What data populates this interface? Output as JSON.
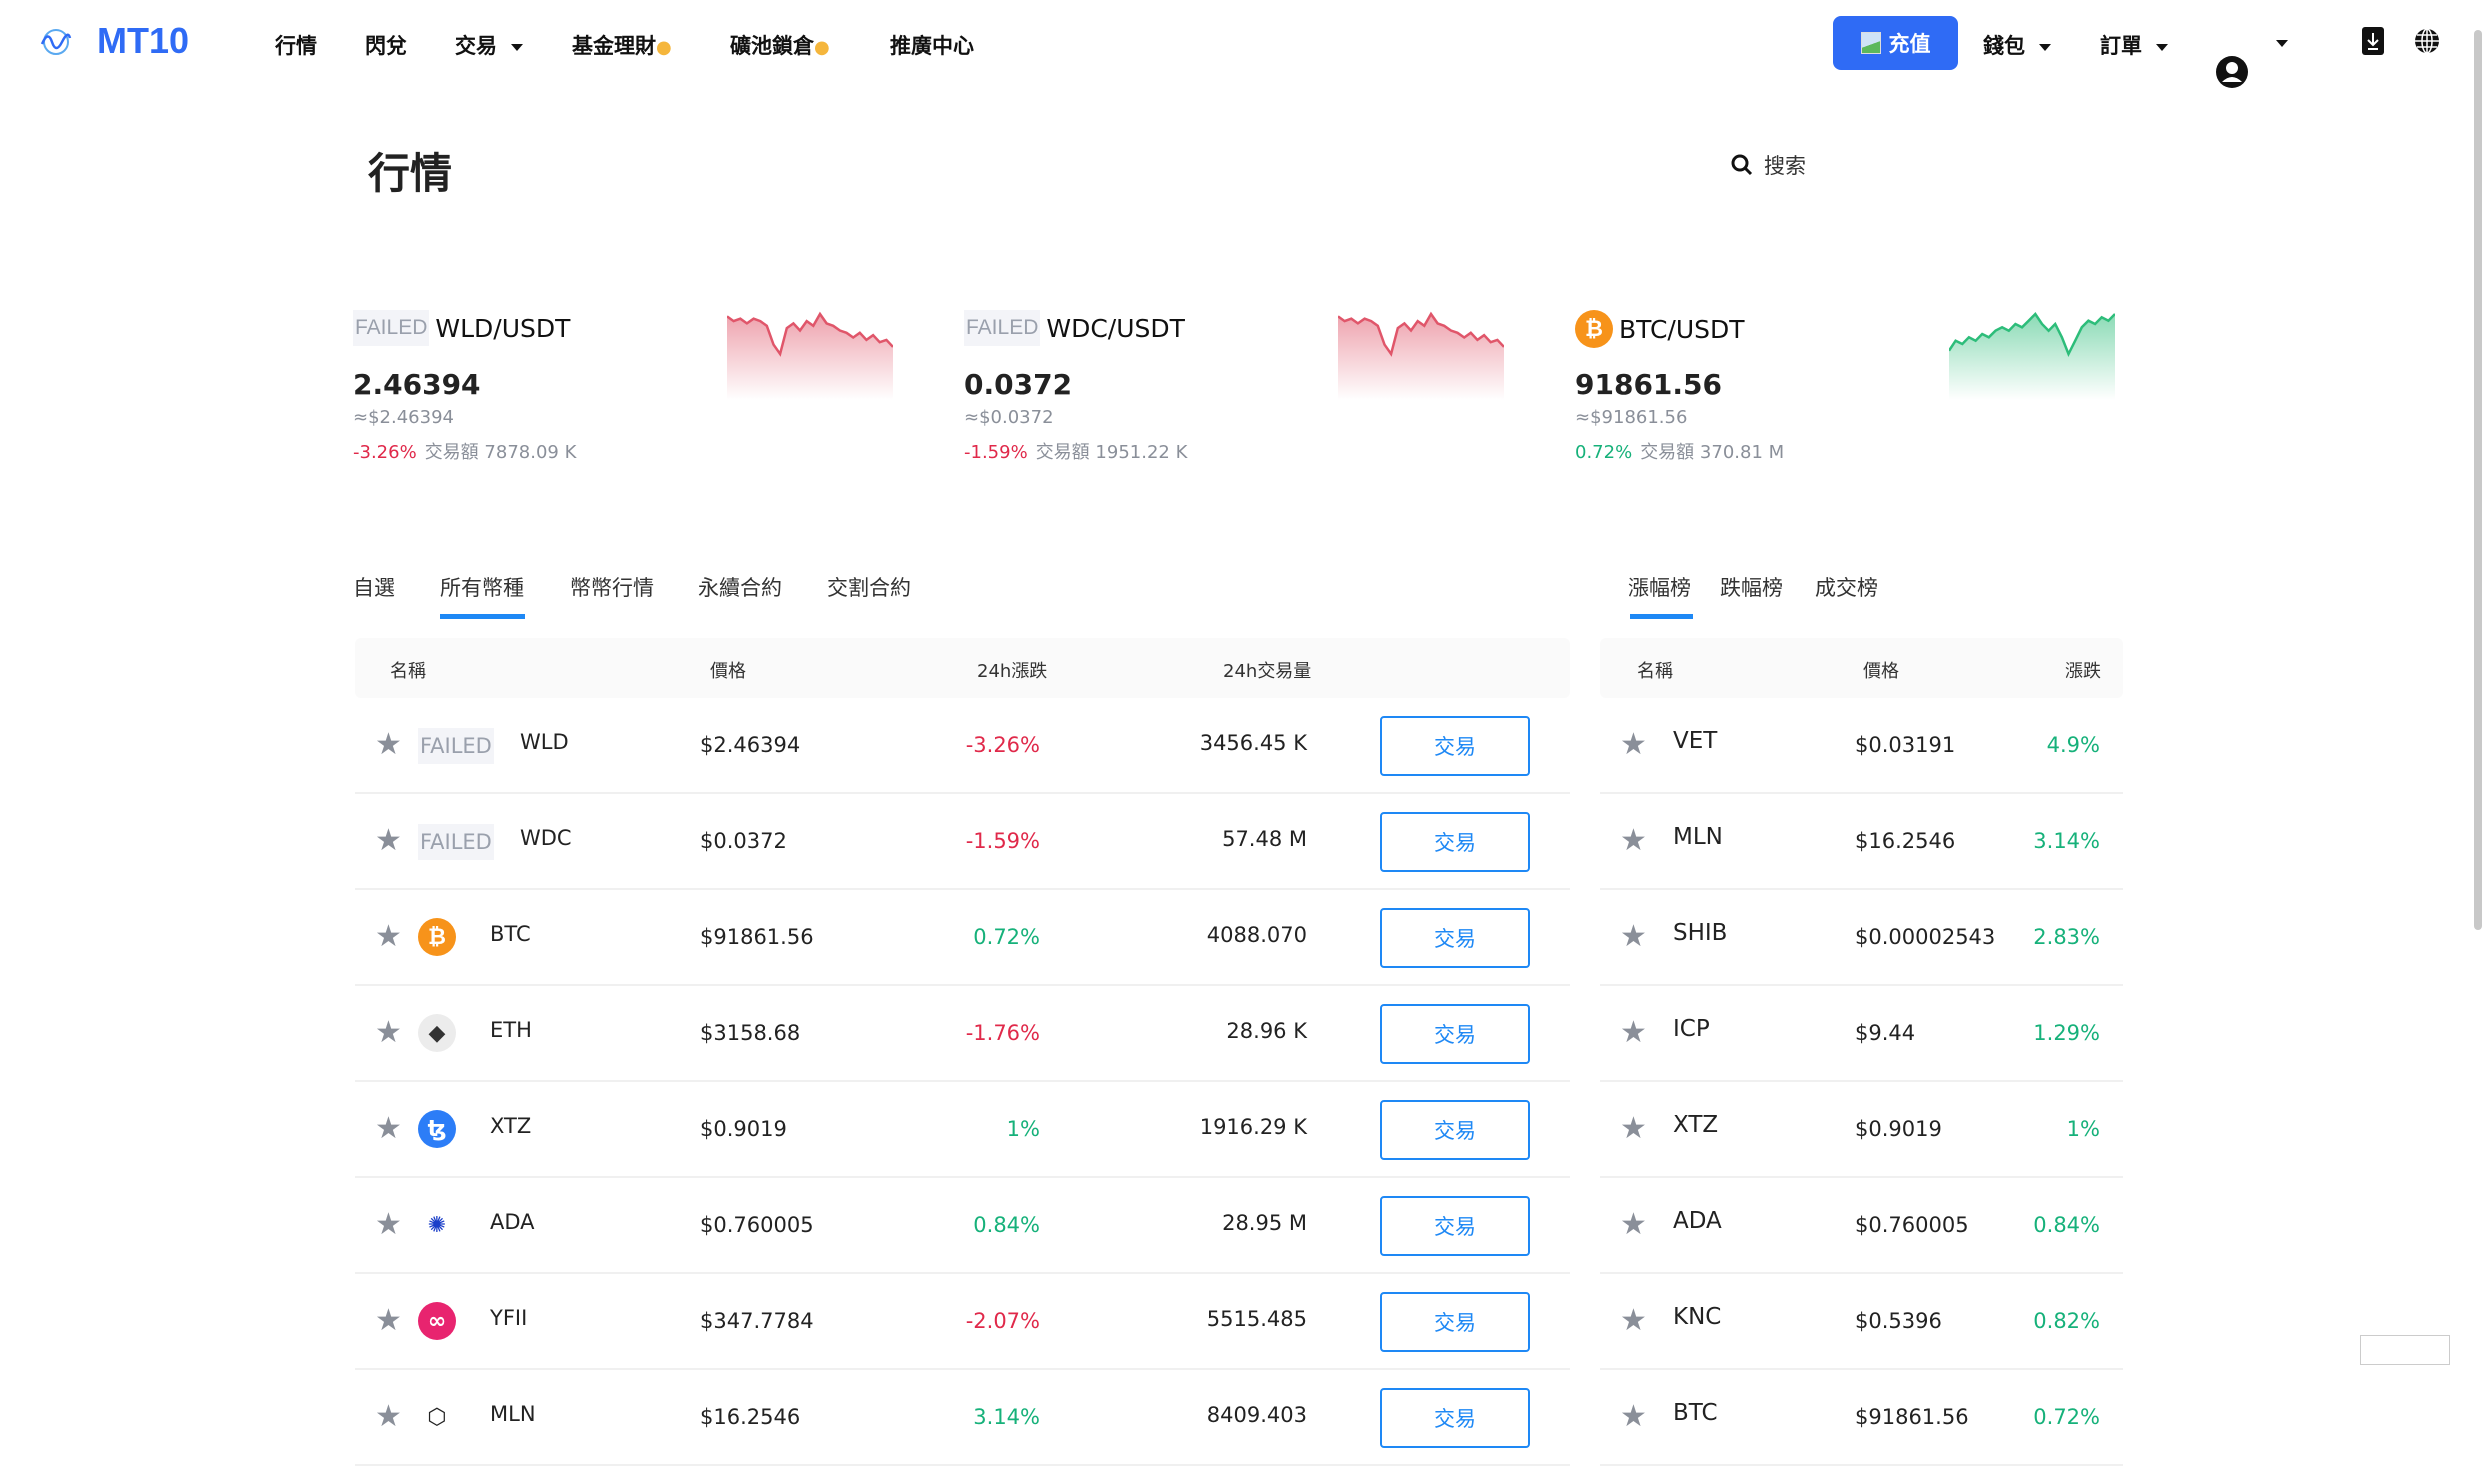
{
  "nav": {
    "logo": "MT10",
    "items": [
      {
        "label": "行情"
      },
      {
        "label": "閃兌"
      },
      {
        "label": "交易",
        "dropdown": true
      },
      {
        "label": "基金理財",
        "hot": true
      },
      {
        "label": "礦池鎖倉",
        "hot": true
      },
      {
        "label": "推廣中心"
      }
    ],
    "recharge": "充值",
    "wallet": "錢包",
    "orders": "訂單",
    "icons": [
      "user-avatar-icon",
      "download-icon",
      "globe-icon"
    ]
  },
  "page": {
    "title": "行情",
    "search": "搜索"
  },
  "colors": {
    "accent": "#2f6bf5",
    "up": "#16b17a",
    "down": "#e0294a"
  },
  "cards": [
    {
      "icon": "FAILED",
      "pair": "WLD/USDT",
      "price": "2.46394",
      "usd": "≈$2.46394",
      "change": "-3.26%",
      "trend": "down",
      "vol_label": "交易額",
      "volume": "7878.09 K",
      "spark": [
        8,
        6,
        7,
        5,
        7,
        6,
        4,
        -4,
        -8,
        3,
        5,
        2,
        6,
        4,
        9,
        5,
        4,
        2,
        1,
        -1,
        1,
        -2,
        0,
        -3,
        -2,
        -5
      ]
    },
    {
      "icon": "FAILED",
      "pair": "WDC/USDT",
      "price": "0.0372",
      "usd": "≈$0.0372",
      "change": "-1.59%",
      "trend": "down",
      "vol_label": "交易額",
      "volume": "1951.22 K",
      "spark": [
        8,
        6,
        7,
        5,
        7,
        6,
        4,
        -4,
        -8,
        3,
        5,
        2,
        6,
        4,
        9,
        5,
        4,
        2,
        1,
        -1,
        1,
        -2,
        0,
        -3,
        -2,
        -5
      ]
    },
    {
      "icon": "btc",
      "pair": "BTC/USDT",
      "price": "91861.56",
      "usd": "≈$91861.56",
      "change": "0.72%",
      "trend": "up",
      "vol_label": "交易額",
      "volume": "370.81 M",
      "spark": [
        -2,
        1,
        0,
        2,
        1,
        3,
        2,
        4,
        5,
        4,
        6,
        5,
        7,
        9,
        6,
        4,
        6,
        2,
        -3,
        1,
        5,
        7,
        6,
        8,
        7,
        9
      ]
    }
  ],
  "main_tabs": {
    "items": [
      "自選",
      "所有幣種",
      "幣幣行情",
      "永續合約",
      "交割合約"
    ],
    "active": 1
  },
  "main_table": {
    "headers": [
      "名稱",
      "價格",
      "24h漲跌",
      "24h交易量"
    ],
    "trade_label": "交易",
    "rows": [
      {
        "icon": "FAILED",
        "symbol": "WLD",
        "price": "$2.46394",
        "change": "-3.26%",
        "volume": "3456.45 K"
      },
      {
        "icon": "FAILED",
        "symbol": "WDC",
        "price": "$0.0372",
        "change": "-1.59%",
        "volume": "57.48 M"
      },
      {
        "icon": "btc",
        "symbol": "BTC",
        "price": "$91861.56",
        "change": "0.72%",
        "volume": "4088.070"
      },
      {
        "icon": "eth",
        "symbol": "ETH",
        "price": "$3158.68",
        "change": "-1.76%",
        "volume": "28.96 K"
      },
      {
        "icon": "xtz",
        "symbol": "XTZ",
        "price": "$0.9019",
        "change": "1%",
        "volume": "1916.29 K"
      },
      {
        "icon": "ada",
        "symbol": "ADA",
        "price": "$0.760005",
        "change": "0.84%",
        "volume": "28.95 M"
      },
      {
        "icon": "yfii",
        "symbol": "YFII",
        "price": "$347.7784",
        "change": "-2.07%",
        "volume": "5515.485"
      },
      {
        "icon": "mln",
        "symbol": "MLN",
        "price": "$16.2546",
        "change": "3.14%",
        "volume": "8409.403"
      }
    ]
  },
  "rank_tabs": {
    "items": [
      "漲幅榜",
      "跌幅榜",
      "成交榜"
    ],
    "active": 0
  },
  "rank_table": {
    "headers": [
      "名稱",
      "價格",
      "漲跌"
    ],
    "rows": [
      {
        "symbol": "VET",
        "price": "$0.03191",
        "change": "4.9%"
      },
      {
        "symbol": "MLN",
        "price": "$16.2546",
        "change": "3.14%"
      },
      {
        "symbol": "SHIB",
        "price": "$0.00002543",
        "change": "2.83%"
      },
      {
        "symbol": "ICP",
        "price": "$9.44",
        "change": "1.29%"
      },
      {
        "symbol": "XTZ",
        "price": "$0.9019",
        "change": "1%"
      },
      {
        "symbol": "ADA",
        "price": "$0.760005",
        "change": "0.84%"
      },
      {
        "symbol": "KNC",
        "price": "$0.5396",
        "change": "0.82%"
      },
      {
        "symbol": "BTC",
        "price": "$91861.56",
        "change": "0.72%"
      }
    ]
  }
}
